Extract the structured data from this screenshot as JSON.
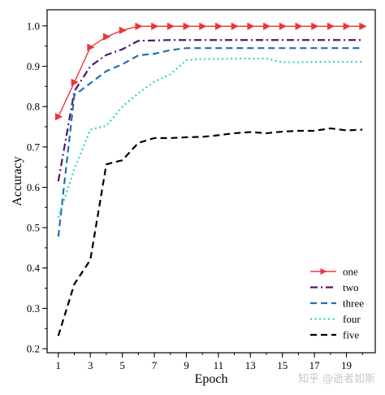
{
  "chart_data": {
    "type": "line",
    "xlabel": "Epoch",
    "ylabel": "Accuracy",
    "xlim": [
      0.3,
      20.8
    ],
    "ylim": [
      0.19,
      1.04
    ],
    "xticks": [
      1,
      3,
      5,
      7,
      9,
      11,
      13,
      15,
      17,
      19
    ],
    "yticks": [
      0.2,
      0.3,
      0.4,
      0.5,
      0.6,
      0.7,
      0.8,
      0.9,
      1.0
    ],
    "ytick_labels": [
      "0.2",
      "0.3",
      "0.4",
      "0.5",
      "0.6",
      "0.7",
      "0.8",
      "0.9",
      "1.0"
    ],
    "legend_position": "bottom-right",
    "x": [
      1,
      2,
      3,
      4,
      5,
      6,
      7,
      8,
      9,
      10,
      11,
      12,
      13,
      14,
      15,
      16,
      17,
      18,
      19,
      20
    ],
    "series": [
      {
        "name": "one",
        "color": "#e8383d",
        "dash": "solid",
        "marker": "triangle-right",
        "values": [
          0.775,
          0.86,
          0.947,
          0.973,
          0.989,
          0.999,
          0.999,
          0.999,
          0.999,
          0.999,
          0.999,
          0.999,
          0.999,
          0.999,
          0.999,
          0.999,
          0.999,
          0.999,
          0.999,
          0.999
        ]
      },
      {
        "name": "two",
        "color": "#4b1a6e",
        "dash": "dashdot",
        "values": [
          0.615,
          0.838,
          0.9,
          0.928,
          0.942,
          0.963,
          0.964,
          0.965,
          0.965,
          0.965,
          0.965,
          0.965,
          0.965,
          0.965,
          0.965,
          0.965,
          0.965,
          0.965,
          0.965,
          0.965
        ]
      },
      {
        "name": "three",
        "color": "#1f6fb3",
        "dash": "dashed",
        "values": [
          0.478,
          0.828,
          0.858,
          0.888,
          0.905,
          0.927,
          0.931,
          0.94,
          0.945,
          0.945,
          0.945,
          0.945,
          0.945,
          0.945,
          0.945,
          0.945,
          0.945,
          0.945,
          0.945,
          0.945
        ]
      },
      {
        "name": "four",
        "color": "#2fd5b5",
        "dash": "dotted",
        "values": [
          0.525,
          0.645,
          0.743,
          0.752,
          0.8,
          0.833,
          0.862,
          0.88,
          0.915,
          0.918,
          0.918,
          0.919,
          0.919,
          0.919,
          0.91,
          0.91,
          0.911,
          0.911,
          0.911,
          0.911
        ]
      },
      {
        "name": "five",
        "color": "#000000",
        "dash": "dashed",
        "values": [
          0.232,
          0.36,
          0.42,
          0.657,
          0.667,
          0.71,
          0.722,
          0.722,
          0.724,
          0.725,
          0.729,
          0.734,
          0.737,
          0.734,
          0.738,
          0.74,
          0.74,
          0.746,
          0.741,
          0.743
        ]
      }
    ]
  },
  "watermark": "知乎 @逝者如斯"
}
